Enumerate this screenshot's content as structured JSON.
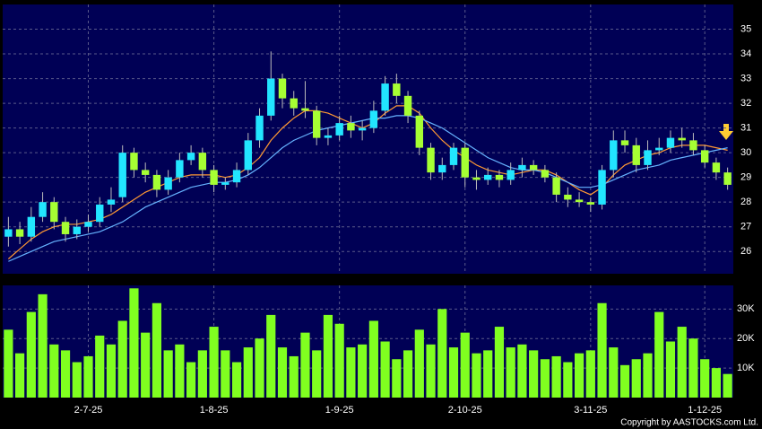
{
  "chart_data": {
    "type": "candlestick",
    "categories": [
      null,
      null,
      null,
      null,
      null,
      null,
      null,
      "2-7-25",
      null,
      null,
      null,
      null,
      null,
      null,
      null,
      null,
      null,
      null,
      "1-8-25",
      null,
      null,
      null,
      null,
      null,
      null,
      null,
      null,
      null,
      null,
      "1-9-25",
      null,
      null,
      null,
      null,
      null,
      null,
      null,
      null,
      null,
      null,
      "2-10-25",
      null,
      null,
      null,
      null,
      null,
      null,
      null,
      null,
      null,
      null,
      "3-11-25",
      null,
      null,
      null,
      null,
      null,
      null,
      null,
      null,
      null,
      "1-12-25",
      null,
      null
    ],
    "open": [
      26.6,
      26.9,
      26.6,
      27.4,
      28.0,
      27.2,
      26.7,
      27.0,
      27.2,
      27.9,
      28.2,
      30.0,
      29.3,
      29.1,
      28.5,
      29.0,
      29.7,
      30.0,
      29.3,
      28.7,
      28.8,
      29.3,
      30.5,
      31.5,
      33.0,
      32.2,
      31.8,
      31.7,
      30.6,
      30.7,
      31.2,
      30.9,
      31.0,
      31.7,
      32.8,
      32.3,
      31.5,
      30.2,
      29.2,
      29.5,
      30.2,
      29.0,
      28.9,
      29.1,
      28.9,
      29.3,
      29.5,
      29.3,
      29.0,
      28.3,
      28.1,
      28.0,
      27.9,
      29.3,
      30.5,
      30.3,
      29.5,
      30.1,
      30.2,
      30.6,
      30.5,
      30.1,
      29.6,
      29.2
    ],
    "high": [
      27.4,
      27.2,
      27.8,
      28.4,
      28.2,
      27.4,
      27.3,
      27.5,
      28.2,
      28.6,
      30.3,
      30.2,
      29.6,
      29.3,
      29.3,
      30.0,
      30.3,
      30.2,
      29.5,
      29.0,
      29.6,
      30.8,
      31.8,
      34.1,
      33.2,
      32.5,
      32.9,
      31.9,
      31.0,
      31.5,
      31.5,
      31.3,
      32.1,
      33.1,
      33.2,
      32.5,
      31.7,
      30.4,
      29.8,
      30.4,
      30.4,
      29.3,
      29.4,
      29.3,
      29.6,
      29.8,
      29.7,
      29.5,
      29.2,
      28.6,
      28.4,
      28.2,
      29.5,
      30.9,
      30.9,
      30.6,
      30.5,
      30.6,
      30.9,
      31.0,
      30.8,
      30.3,
      29.8,
      29.4
    ],
    "low": [
      26.2,
      26.3,
      26.4,
      27.2,
      26.9,
      26.4,
      26.5,
      26.8,
      27.0,
      27.6,
      28.0,
      29.0,
      28.8,
      28.2,
      28.3,
      28.8,
      29.5,
      29.0,
      28.4,
      28.5,
      28.6,
      29.1,
      30.2,
      31.3,
      31.8,
      31.5,
      31.4,
      30.3,
      30.3,
      30.5,
      30.6,
      30.5,
      30.8,
      31.5,
      32.0,
      31.2,
      29.9,
      28.9,
      28.9,
      29.3,
      28.6,
      28.5,
      28.7,
      28.6,
      28.7,
      29.0,
      29.1,
      28.8,
      28.0,
      27.8,
      27.8,
      27.6,
      27.7,
      29.0,
      30.0,
      29.2,
      29.3,
      29.9,
      30.0,
      30.2,
      29.9,
      29.4,
      28.9,
      28.5
    ],
    "close": [
      26.9,
      26.6,
      27.4,
      28.0,
      27.2,
      26.7,
      27.0,
      27.2,
      27.9,
      28.1,
      30.0,
      29.3,
      29.1,
      28.5,
      29.0,
      29.7,
      30.0,
      29.3,
      28.7,
      28.8,
      29.3,
      30.5,
      31.5,
      33.0,
      32.2,
      31.8,
      31.7,
      30.6,
      30.7,
      31.2,
      30.9,
      31.0,
      31.7,
      32.8,
      32.3,
      31.5,
      30.2,
      29.2,
      29.5,
      30.2,
      29.0,
      28.9,
      29.1,
      28.9,
      29.3,
      29.5,
      29.3,
      29.0,
      28.3,
      28.1,
      28.0,
      27.9,
      29.3,
      30.5,
      30.3,
      29.5,
      30.1,
      30.2,
      30.6,
      30.5,
      30.1,
      29.6,
      29.2,
      28.7
    ],
    "up_color": "#22e5ff",
    "down_color": "#a6ff33",
    "lines": [
      {
        "color": "#ff9933",
        "values": [
          25.7,
          26.1,
          26.5,
          26.8,
          27.0,
          27.1,
          27.1,
          27.2,
          27.3,
          27.5,
          27.8,
          28.1,
          28.4,
          28.6,
          28.8,
          29.0,
          29.1,
          29.1,
          29.1,
          29.0,
          29.1,
          29.4,
          29.8,
          30.5,
          31.0,
          31.4,
          31.7,
          31.7,
          31.6,
          31.4,
          31.2,
          31.0,
          31.2,
          31.6,
          31.9,
          31.9,
          31.6,
          31.0,
          30.5,
          30.1,
          29.8,
          29.5,
          29.3,
          29.2,
          29.1,
          29.2,
          29.3,
          29.3,
          29.1,
          28.8,
          28.5,
          28.3,
          28.6,
          29.1,
          29.5,
          29.7,
          29.9,
          30.0,
          30.2,
          30.3,
          30.3,
          30.3,
          30.2,
          30.1
        ]
      },
      {
        "color": "#66b3ff",
        "values": [
          25.6,
          25.8,
          26.0,
          26.2,
          26.4,
          26.5,
          26.6,
          26.7,
          26.8,
          27.0,
          27.2,
          27.5,
          27.8,
          28.0,
          28.2,
          28.4,
          28.6,
          28.7,
          28.8,
          28.8,
          28.9,
          29.1,
          29.4,
          29.8,
          30.2,
          30.5,
          30.7,
          30.9,
          31.0,
          31.1,
          31.2,
          31.3,
          31.4,
          31.4,
          31.5,
          31.5,
          31.4,
          31.2,
          31.0,
          30.7,
          30.4,
          30.1,
          29.8,
          29.6,
          29.4,
          29.3,
          29.3,
          29.2,
          29.0,
          28.8,
          28.6,
          28.6,
          28.7,
          28.9,
          29.1,
          29.3,
          29.4,
          29.5,
          29.7,
          29.8,
          29.9,
          30.0,
          30.1,
          30.2
        ]
      }
    ],
    "ylim": [
      25.1,
      36.0
    ],
    "yticks": [
      26,
      27,
      28,
      29,
      30,
      31,
      32,
      33,
      34,
      35
    ],
    "volume": [
      23000,
      15000,
      29000,
      35000,
      18000,
      16000,
      12000,
      14000,
      21000,
      18000,
      26000,
      37000,
      22000,
      32000,
      16000,
      18000,
      12000,
      16000,
      24000,
      16000,
      12000,
      17000,
      20000,
      28000,
      17000,
      14000,
      22000,
      16000,
      28000,
      25000,
      17000,
      18000,
      26000,
      19000,
      13000,
      16000,
      23000,
      18000,
      30000,
      17000,
      22000,
      15000,
      16000,
      24000,
      17000,
      18000,
      16000,
      13000,
      14000,
      12000,
      15000,
      16000,
      32000,
      17000,
      11000,
      13000,
      15000,
      29000,
      19000,
      24000,
      20000,
      13000,
      10000,
      8000
    ],
    "volume_color": "#80ff20",
    "y2lim": [
      0,
      38000
    ],
    "y2ticks": [
      {
        "value": 10000,
        "label": "10K"
      },
      {
        "value": 20000,
        "label": "20K"
      },
      {
        "value": 30000,
        "label": "30K"
      }
    ],
    "grid": true,
    "footer": "Copyright by AASTOCKS.com Ltd."
  }
}
